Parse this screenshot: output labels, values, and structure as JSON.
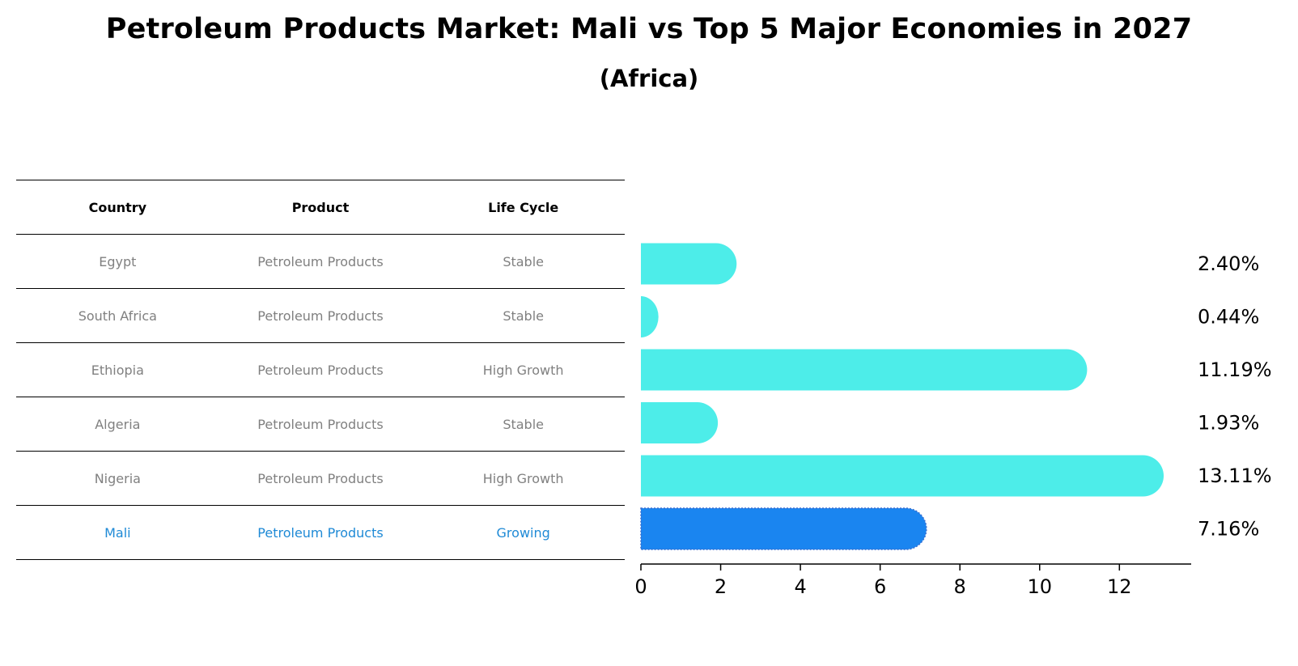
{
  "title": "Petroleum Products Market: Mali vs Top 5 Major Economies in 2027",
  "subtitle": "(Africa)",
  "table": {
    "headers": [
      "Country",
      "Product",
      "Life Cycle"
    ],
    "rows": [
      {
        "country": "Egypt",
        "product": "Petroleum Products",
        "life_cycle": "Stable"
      },
      {
        "country": "South Africa",
        "product": "Petroleum Products",
        "life_cycle": "Stable"
      },
      {
        "country": "Ethiopia",
        "product": "Petroleum Products",
        "life_cycle": "High Growth"
      },
      {
        "country": "Algeria",
        "product": "Petroleum Products",
        "life_cycle": "Stable"
      },
      {
        "country": "Nigeria",
        "product": "Petroleum Products",
        "life_cycle": "High Growth"
      },
      {
        "country": "Mali",
        "product": "Petroleum Products",
        "life_cycle": "Growing"
      }
    ],
    "highlight_row": "Mali"
  },
  "colors": {
    "bar": "#4dede9",
    "highlight_bar": "#1a85f0",
    "highlight_text": "#1f8ad6",
    "muted_text": "#808080"
  },
  "chart_data": {
    "type": "bar",
    "orientation": "horizontal",
    "categories": [
      "Egypt",
      "South Africa",
      "Ethiopia",
      "Algeria",
      "Nigeria",
      "Mali"
    ],
    "values": [
      2.4,
      0.44,
      11.19,
      1.93,
      13.11,
      7.16
    ],
    "value_labels": [
      "2.40%",
      "0.44%",
      "11.19%",
      "1.93%",
      "13.11%",
      "7.16%"
    ],
    "highlight": "Mali",
    "xticks": [
      0,
      2,
      4,
      6,
      8,
      10,
      12
    ],
    "xlim": [
      0,
      13.8
    ],
    "xlabel": "",
    "ylabel": ""
  }
}
